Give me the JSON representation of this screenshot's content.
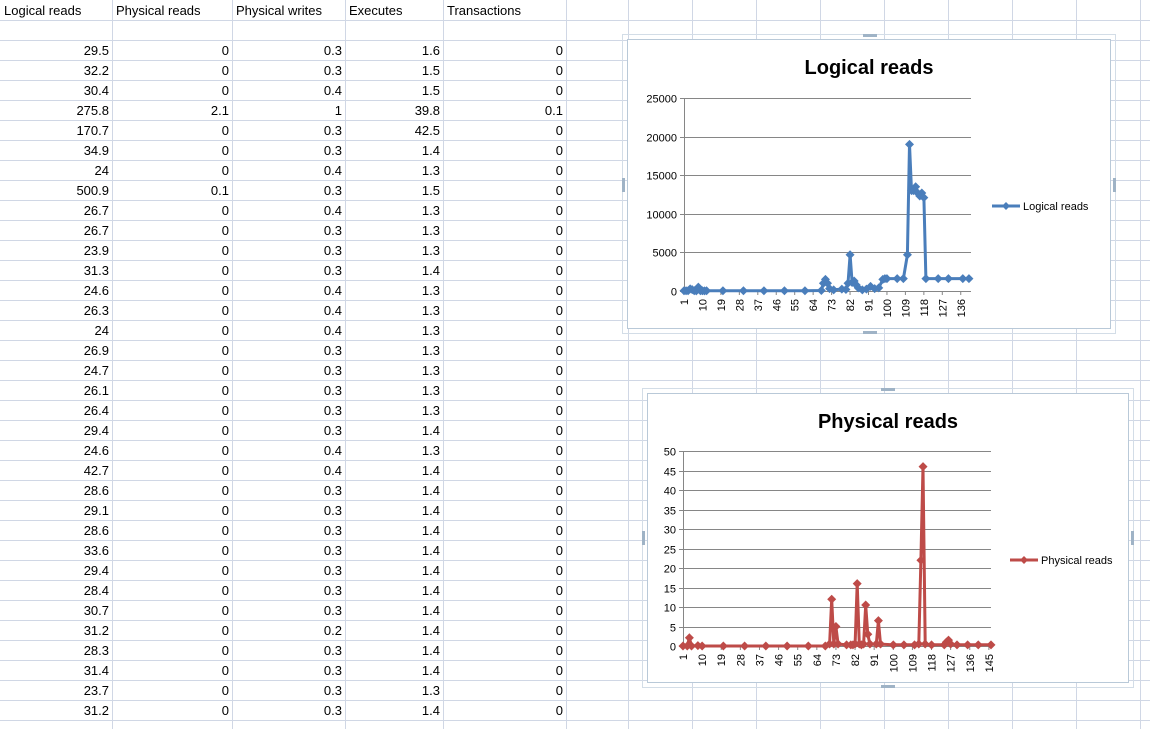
{
  "sheet": {
    "headers": [
      "Logical reads",
      "Physical reads",
      "Physical writes",
      "Executes",
      "Transactions"
    ],
    "rows": [
      [
        "29.5",
        "0",
        "0.3",
        "1.6",
        "0"
      ],
      [
        "32.2",
        "0",
        "0.3",
        "1.5",
        "0"
      ],
      [
        "30.4",
        "0",
        "0.4",
        "1.5",
        "0"
      ],
      [
        "275.8",
        "2.1",
        "1",
        "39.8",
        "0.1"
      ],
      [
        "170.7",
        "0",
        "0.3",
        "42.5",
        "0"
      ],
      [
        "34.9",
        "0",
        "0.3",
        "1.4",
        "0"
      ],
      [
        "24",
        "0",
        "0.4",
        "1.3",
        "0"
      ],
      [
        "500.9",
        "0.1",
        "0.3",
        "1.5",
        "0"
      ],
      [
        "26.7",
        "0",
        "0.4",
        "1.3",
        "0"
      ],
      [
        "26.7",
        "0",
        "0.3",
        "1.3",
        "0"
      ],
      [
        "23.9",
        "0",
        "0.3",
        "1.3",
        "0"
      ],
      [
        "31.3",
        "0",
        "0.3",
        "1.4",
        "0"
      ],
      [
        "24.6",
        "0",
        "0.4",
        "1.3",
        "0"
      ],
      [
        "26.3",
        "0",
        "0.4",
        "1.3",
        "0"
      ],
      [
        "24",
        "0",
        "0.4",
        "1.3",
        "0"
      ],
      [
        "26.9",
        "0",
        "0.3",
        "1.3",
        "0"
      ],
      [
        "24.7",
        "0",
        "0.3",
        "1.3",
        "0"
      ],
      [
        "26.1",
        "0",
        "0.3",
        "1.3",
        "0"
      ],
      [
        "26.4",
        "0",
        "0.3",
        "1.3",
        "0"
      ],
      [
        "29.4",
        "0",
        "0.3",
        "1.4",
        "0"
      ],
      [
        "24.6",
        "0",
        "0.4",
        "1.3",
        "0"
      ],
      [
        "42.7",
        "0",
        "0.4",
        "1.4",
        "0"
      ],
      [
        "28.6",
        "0",
        "0.3",
        "1.4",
        "0"
      ],
      [
        "29.1",
        "0",
        "0.3",
        "1.4",
        "0"
      ],
      [
        "28.6",
        "0",
        "0.3",
        "1.4",
        "0"
      ],
      [
        "33.6",
        "0",
        "0.3",
        "1.4",
        "0"
      ],
      [
        "29.4",
        "0",
        "0.3",
        "1.4",
        "0"
      ],
      [
        "28.4",
        "0",
        "0.3",
        "1.4",
        "0"
      ],
      [
        "30.7",
        "0",
        "0.3",
        "1.4",
        "0"
      ],
      [
        "31.2",
        "0",
        "0.2",
        "1.4",
        "0"
      ],
      [
        "28.3",
        "0",
        "0.3",
        "1.4",
        "0"
      ],
      [
        "31.4",
        "0",
        "0.3",
        "1.4",
        "0"
      ],
      [
        "23.7",
        "0",
        "0.3",
        "1.3",
        "0"
      ],
      [
        "31.2",
        "0",
        "0.3",
        "1.4",
        "0"
      ]
    ]
  },
  "chart_data": [
    {
      "type": "line",
      "title": "Logical reads",
      "xlabel": "",
      "ylabel": "",
      "color": "#4a7ebb",
      "ylim": [
        0,
        25000
      ],
      "yticks": [
        "0",
        "5000",
        "10000",
        "15000",
        "20000",
        "25000"
      ],
      "xtick_labels": [
        "1",
        "10",
        "19",
        "28",
        "37",
        "46",
        "55",
        "64",
        "73",
        "82",
        "91",
        "100",
        "109",
        "118",
        "127",
        "136"
      ],
      "legend": "right",
      "series": [
        {
          "name": "Logical reads",
          "points": [
            [
              1,
              30
            ],
            [
              2,
              32
            ],
            [
              3,
              30
            ],
            [
              4,
              276
            ],
            [
              5,
              171
            ],
            [
              6,
              35
            ],
            [
              7,
              24
            ],
            [
              8,
              501
            ],
            [
              9,
              27
            ],
            [
              10,
              27
            ],
            [
              11,
              24
            ],
            [
              12,
              31
            ],
            [
              20,
              30
            ],
            [
              30,
              30
            ],
            [
              40,
              30
            ],
            [
              50,
              30
            ],
            [
              60,
              35
            ],
            [
              68,
              60
            ],
            [
              69,
              1000
            ],
            [
              70,
              1500
            ],
            [
              71,
              1000
            ],
            [
              72,
              300
            ],
            [
              74,
              150
            ],
            [
              78,
              250
            ],
            [
              80,
              200
            ],
            [
              81,
              1000
            ],
            [
              82,
              4700
            ],
            [
              83,
              1100
            ],
            [
              84,
              1300
            ],
            [
              85,
              800
            ],
            [
              86,
              400
            ],
            [
              88,
              150
            ],
            [
              90,
              250
            ],
            [
              92,
              600
            ],
            [
              94,
              300
            ],
            [
              96,
              400
            ],
            [
              98,
              1500
            ],
            [
              99,
              1600
            ],
            [
              100,
              1600
            ],
            [
              105,
              1600
            ],
            [
              108,
              1600
            ],
            [
              110,
              4700
            ],
            [
              111,
              19000
            ],
            [
              112,
              13000
            ],
            [
              113,
              13000
            ],
            [
              114,
              13500
            ],
            [
              115,
              12700
            ],
            [
              116,
              12300
            ],
            [
              117,
              12700
            ],
            [
              118,
              12100
            ],
            [
              119,
              1600
            ],
            [
              125,
              1600
            ],
            [
              130,
              1600
            ],
            [
              137,
              1600
            ],
            [
              140,
              1600
            ]
          ]
        }
      ]
    },
    {
      "type": "line",
      "title": "Physical reads",
      "xlabel": "",
      "ylabel": "",
      "color": "#be4b48",
      "ylim": [
        0,
        50
      ],
      "yticks": [
        "0",
        "5",
        "10",
        "15",
        "20",
        "25",
        "30",
        "35",
        "40",
        "45",
        "50"
      ],
      "xtick_labels": [
        "1",
        "10",
        "19",
        "28",
        "37",
        "46",
        "55",
        "64",
        "73",
        "82",
        "91",
        "100",
        "109",
        "118",
        "127",
        "136",
        "145"
      ],
      "legend": "right",
      "series": [
        {
          "name": "Physical reads",
          "points": [
            [
              1,
              0
            ],
            [
              3,
              0
            ],
            [
              4,
              2.1
            ],
            [
              5,
              0
            ],
            [
              8,
              0.1
            ],
            [
              10,
              0
            ],
            [
              20,
              0
            ],
            [
              30,
              0
            ],
            [
              40,
              0
            ],
            [
              50,
              0
            ],
            [
              60,
              0
            ],
            [
              68,
              0
            ],
            [
              70,
              0.5
            ],
            [
              71,
              12
            ],
            [
              72,
              0.5
            ],
            [
              73,
              5
            ],
            [
              74,
              0.5
            ],
            [
              78,
              0.3
            ],
            [
              80,
              0.3
            ],
            [
              81,
              0.3
            ],
            [
              82,
              0.5
            ],
            [
              83,
              16
            ],
            [
              84,
              0.5
            ],
            [
              85,
              0.3
            ],
            [
              86,
              0.5
            ],
            [
              87,
              10.5
            ],
            [
              88,
              3
            ],
            [
              89,
              0.5
            ],
            [
              92,
              0.5
            ],
            [
              93,
              6.5
            ],
            [
              94,
              0.5
            ],
            [
              100,
              0.3
            ],
            [
              105,
              0.3
            ],
            [
              110,
              0.3
            ],
            [
              112,
              0.5
            ],
            [
              113,
              22
            ],
            [
              114,
              46
            ],
            [
              115,
              0.5
            ],
            [
              118,
              0.3
            ],
            [
              124,
              0.3
            ],
            [
              125,
              1
            ],
            [
              126,
              1.5
            ],
            [
              127,
              0.5
            ],
            [
              130,
              0.3
            ],
            [
              135,
              0.3
            ],
            [
              140,
              0.3
            ],
            [
              146,
              0.3
            ]
          ]
        }
      ]
    }
  ]
}
